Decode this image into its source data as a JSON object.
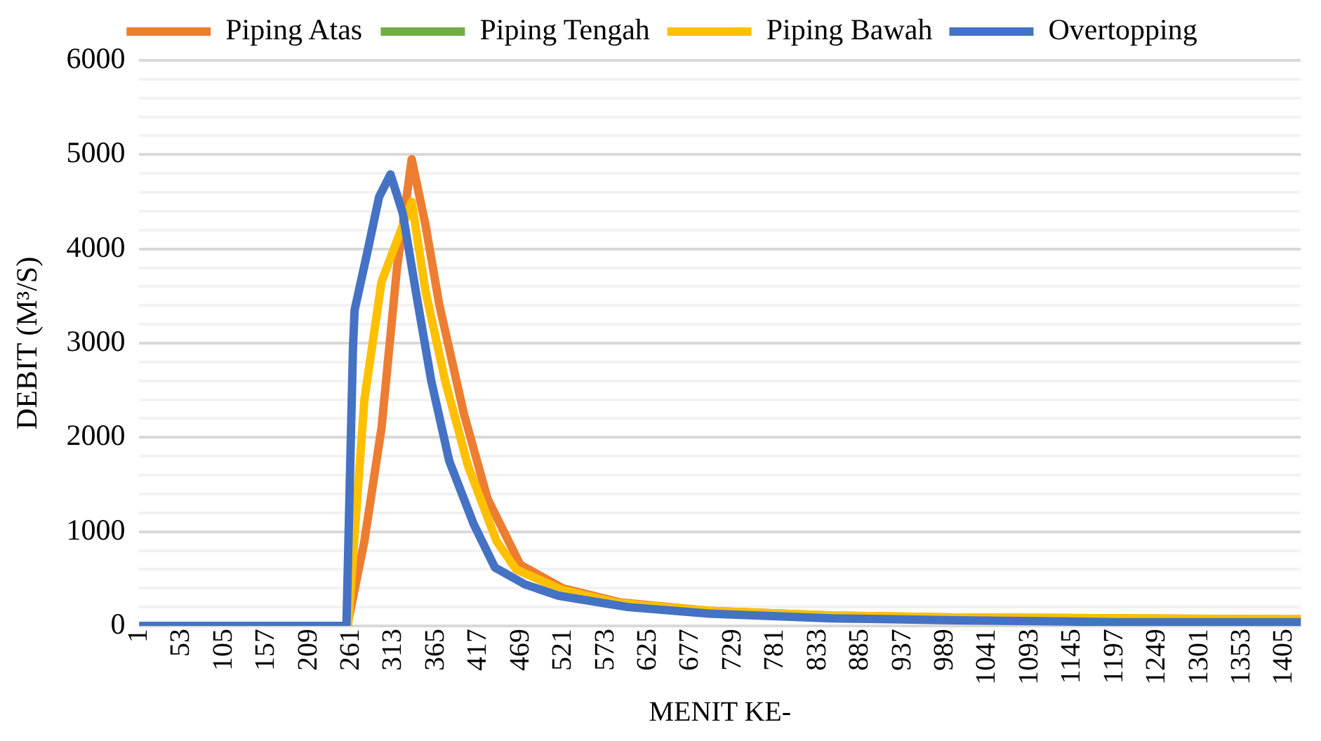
{
  "chart_data": {
    "type": "line",
    "xlabel": "MENIT KE-",
    "ylabel": "DEBIT (M³/S)",
    "xlim": [
      1,
      1425
    ],
    "xticks": [
      1,
      53,
      105,
      157,
      209,
      261,
      313,
      365,
      417,
      469,
      521,
      573,
      625,
      677,
      729,
      781,
      833,
      885,
      937,
      989,
      1041,
      1093,
      1145,
      1197,
      1249,
      1301,
      1353,
      1405
    ],
    "ylim": [
      0,
      6000
    ],
    "yticks": [
      0,
      {
        "value": 200,
        "label": null
      },
      {
        "value": 400,
        "label": null
      },
      {
        "value": 600,
        "label": null
      },
      {
        "value": 800,
        "label": null
      },
      1000,
      {
        "value": 1200,
        "label": null
      },
      {
        "value": 1400,
        "label": null
      },
      {
        "value": 1600,
        "label": null
      },
      {
        "value": 1800,
        "label": null
      },
      2000,
      {
        "value": 2200,
        "label": null
      },
      {
        "value": 2400,
        "label": null
      },
      {
        "value": 2600,
        "label": null
      },
      {
        "value": 2800,
        "label": null
      },
      3000,
      {
        "value": 3200,
        "label": null
      },
      {
        "value": 3400,
        "label": null
      },
      {
        "value": 3600,
        "label": null
      },
      {
        "value": 3800,
        "label": null
      },
      4000,
      {
        "value": 4200,
        "label": null
      },
      {
        "value": 4400,
        "label": null
      },
      {
        "value": 4600,
        "label": null
      },
      {
        "value": 4800,
        "label": null
      },
      5000,
      {
        "value": 5200,
        "label": null
      },
      {
        "value": 5400,
        "label": null
      },
      {
        "value": 5600,
        "label": null
      },
      {
        "value": 5800,
        "label": null
      },
      6000
    ],
    "grid": "y",
    "legend": "top",
    "marker": "none",
    "line_style": "solid",
    "series": [
      {
        "name": "Piping Atas",
        "color": "#ed7d31",
        "x": [
          1,
          256,
          277,
          298,
          317,
          335,
          352,
          369,
          399,
          428,
          468,
          520,
          590,
          700,
          850,
          1000,
          1200,
          1425
        ],
        "values": [
          0,
          0,
          900,
          2100,
          3800,
          4950,
          4250,
          3400,
          2250,
          1350,
          650,
          400,
          250,
          160,
          110,
          90,
          80,
          70
        ]
      },
      {
        "name": "Piping Tengah",
        "color": "#70ad47"
      },
      {
        "name": "Piping Bawah",
        "color": "#ffc000",
        "x": [
          1,
          257,
          277,
          298,
          335,
          352,
          376,
          404,
          439,
          463,
          520,
          590,
          700,
          850,
          1000,
          1200,
          1425
        ],
        "values": [
          0,
          0,
          2400,
          3650,
          4500,
          3550,
          2600,
          1700,
          900,
          600,
          380,
          240,
          160,
          110,
          90,
          80,
          70
        ]
      },
      {
        "name": "Overtopping",
        "color": "#4472c4",
        "x": [
          1,
          255,
          263,
          265,
          281,
          295,
          309,
          324,
          341,
          359,
          381,
          411,
          437,
          474,
          515,
          600,
          700,
          850,
          1000,
          1200,
          1425
        ],
        "values": [
          0,
          0,
          2950,
          3350,
          3980,
          4550,
          4790,
          4380,
          3500,
          2600,
          1750,
          1080,
          620,
          440,
          320,
          200,
          130,
          80,
          60,
          40,
          40
        ]
      }
    ]
  }
}
